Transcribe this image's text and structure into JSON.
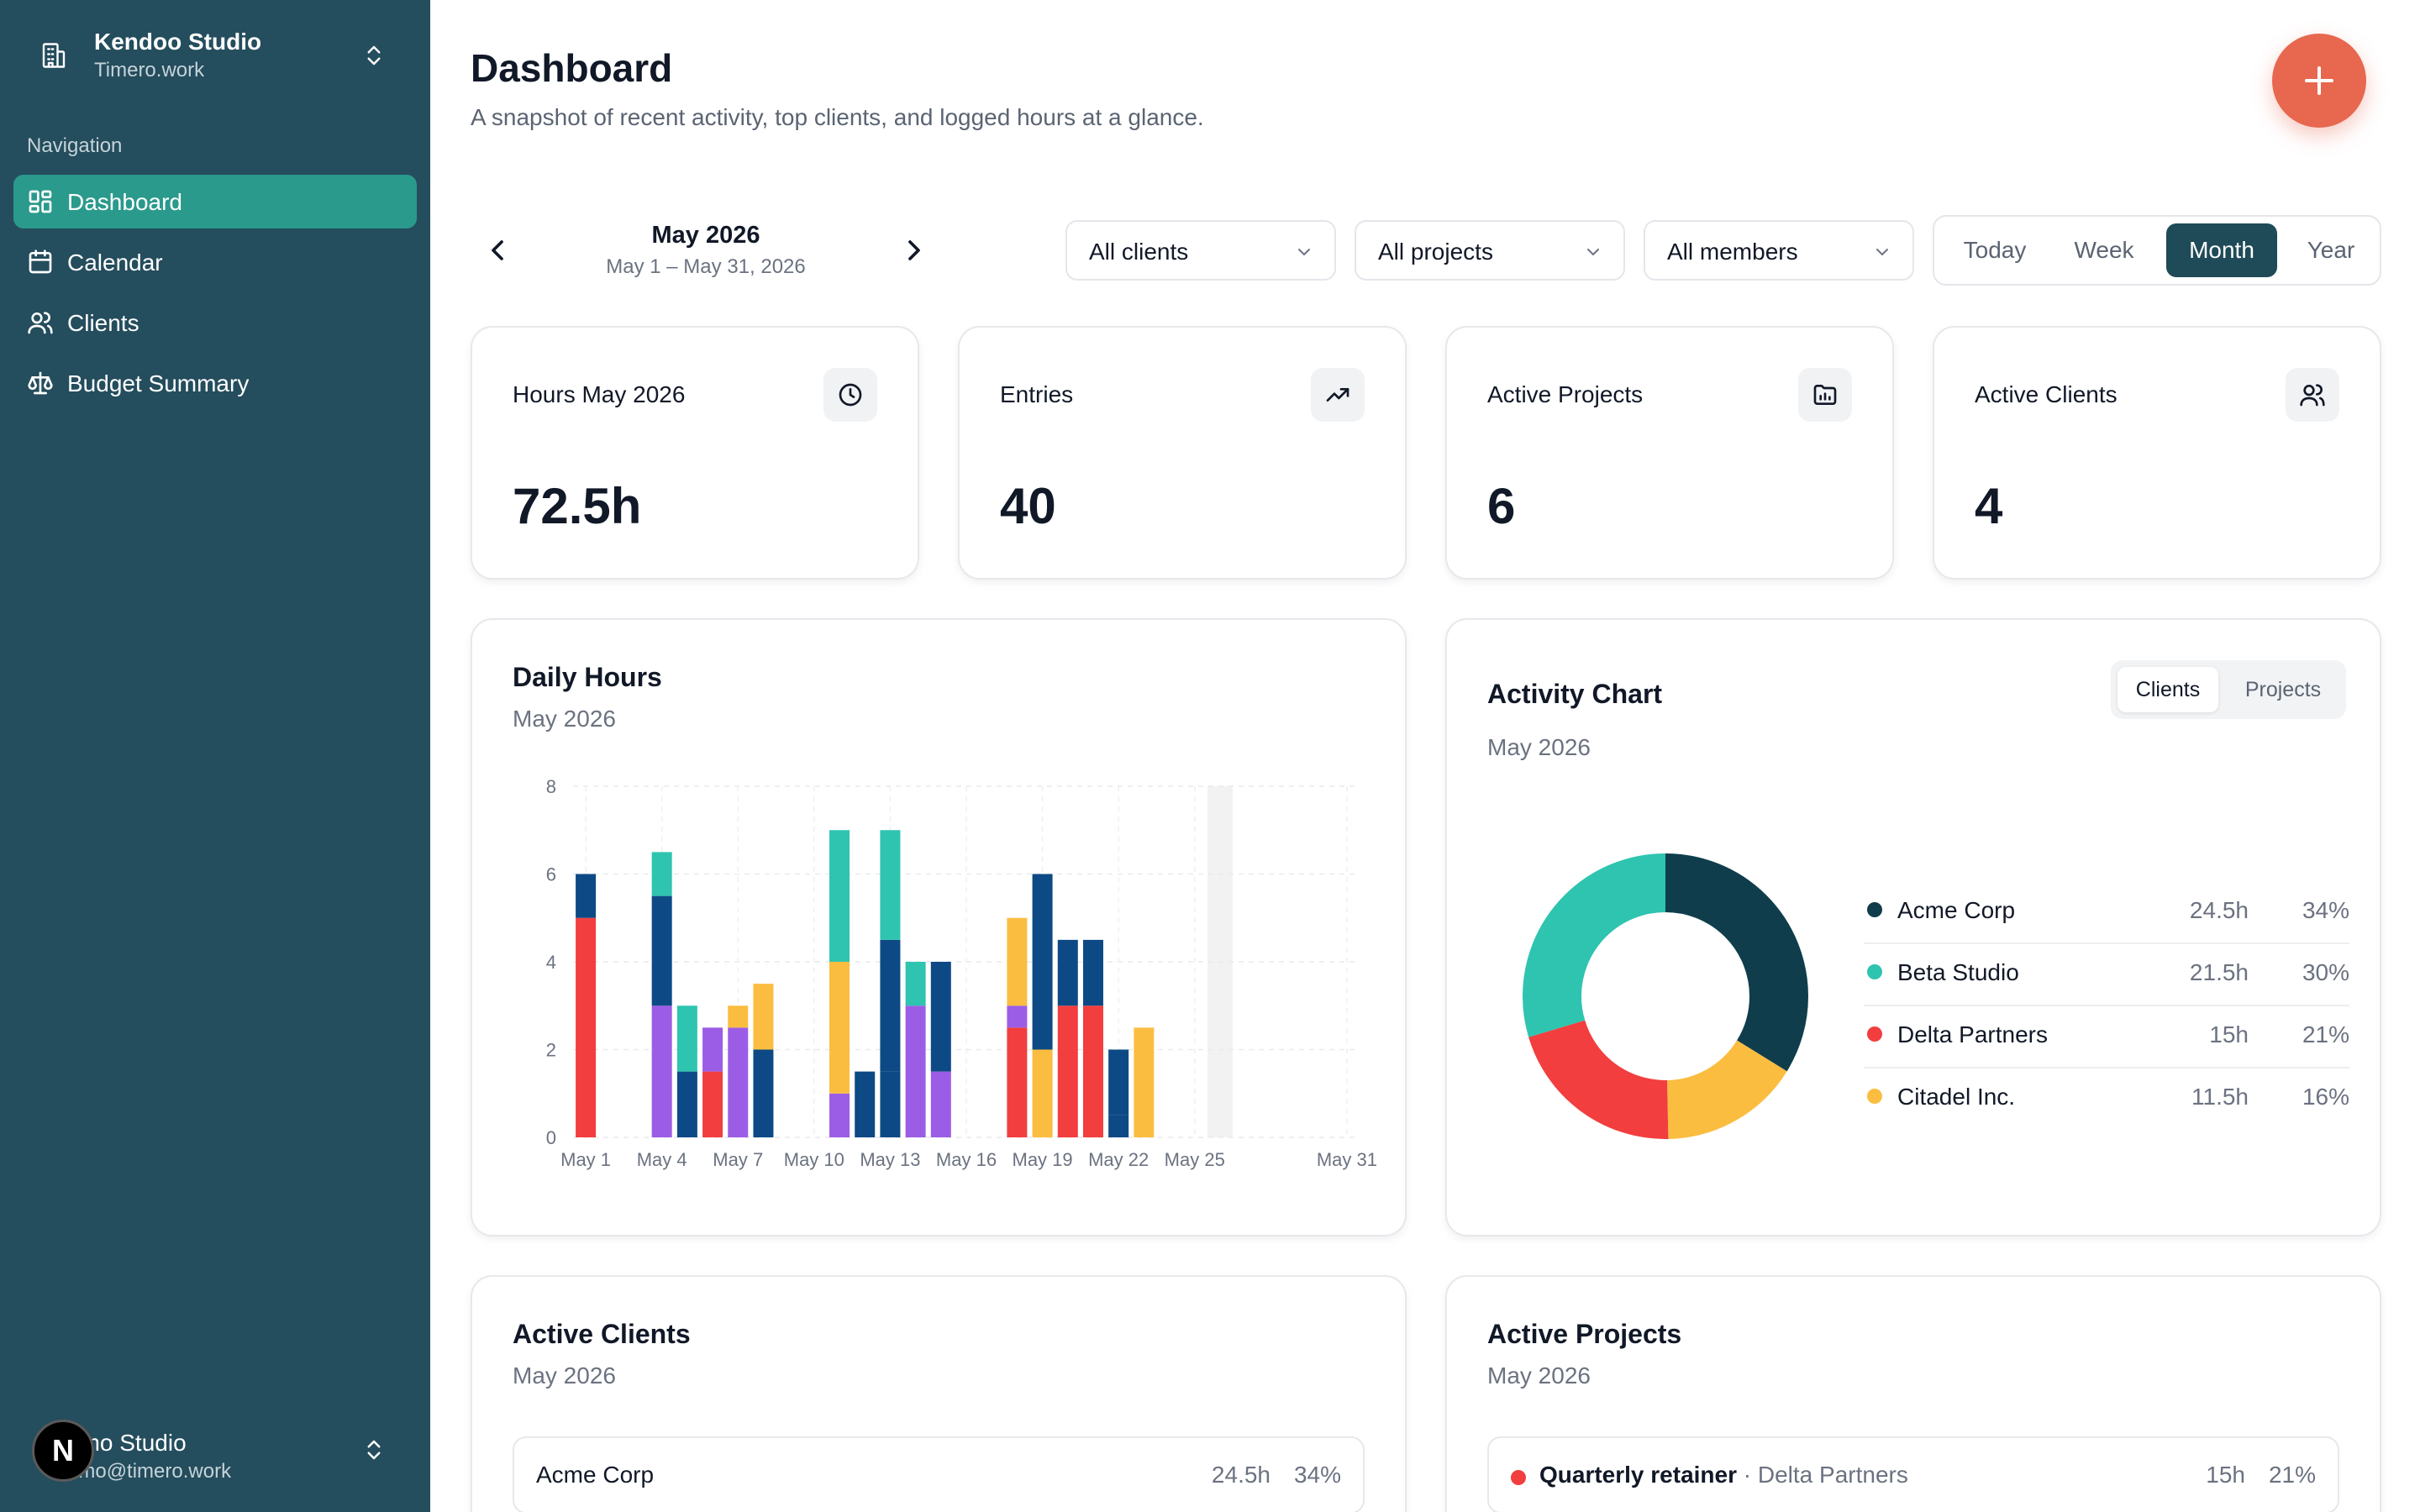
{
  "workspace": {
    "name": "Kendoo Studio",
    "domain": "Timero.work"
  },
  "sidebar": {
    "section_label": "Navigation",
    "items": [
      {
        "label": "Dashboard",
        "icon": "dashboard-icon",
        "active": true
      },
      {
        "label": "Calendar",
        "icon": "calendar-icon"
      },
      {
        "label": "Clients",
        "icon": "users-icon"
      },
      {
        "label": "Budget Summary",
        "icon": "scale-icon"
      }
    ]
  },
  "user": {
    "name": "emo Studio",
    "email": "emo@timero.work",
    "avatar_letter": "N"
  },
  "header": {
    "title": "Dashboard",
    "subtitle": "A snapshot of recent activity, top clients, and logged hours at a glance."
  },
  "period": {
    "title": "May 2026",
    "range": "May 1 – May 31, 2026"
  },
  "filters": {
    "clients": "All clients",
    "projects": "All projects",
    "members": "All members"
  },
  "range_tabs": [
    "Today",
    "Week",
    "Month",
    "Year"
  ],
  "range_active": "Month",
  "stats": [
    {
      "label": "Hours May 2026",
      "value": "72.5h",
      "icon": "clock-icon"
    },
    {
      "label": "Entries",
      "value": "40",
      "icon": "trending-up-icon"
    },
    {
      "label": "Active Projects",
      "value": "6",
      "icon": "folder-chart-icon"
    },
    {
      "label": "Active Clients",
      "value": "4",
      "icon": "users-icon"
    }
  ],
  "colors": {
    "acme": "#0f3d4c",
    "beta": "#2ec4b0",
    "delta": "#f23e3e",
    "citadel": "#fbbd40",
    "purple": "#9b5de5",
    "navy": "#0d4a85",
    "accent": "#2a9a8c",
    "fab": "#e8674f"
  },
  "daily_hours": {
    "title": "Daily Hours",
    "subtitle": "May 2026",
    "chart_data": {
      "type": "bar",
      "stacked": true,
      "x": [
        1,
        2,
        3,
        4,
        5,
        6,
        7,
        8,
        9,
        10,
        11,
        12,
        13,
        14,
        15,
        16,
        17,
        18,
        19,
        20,
        21,
        22,
        23,
        24,
        25,
        26,
        27,
        28,
        29,
        30,
        31
      ],
      "x_tick_labels": [
        "May 1",
        "May 4",
        "May 7",
        "May 10",
        "May 13",
        "May 16",
        "May 19",
        "May 22",
        "May 25",
        "May 31"
      ],
      "x_tick_days": [
        1,
        4,
        7,
        10,
        13,
        16,
        19,
        22,
        25,
        31
      ],
      "ylim": [
        0,
        8
      ],
      "y_ticks": [
        0,
        2,
        4,
        6,
        8
      ],
      "highlight_day": 26,
      "bars": [
        {
          "day": 1,
          "segments": [
            {
              "color": "delta",
              "value": 5
            },
            {
              "color": "navy",
              "value": 1
            }
          ]
        },
        {
          "day": 4,
          "segments": [
            {
              "color": "purple",
              "value": 3
            },
            {
              "color": "navy",
              "value": 2.5
            },
            {
              "color": "beta",
              "value": 1
            }
          ]
        },
        {
          "day": 5,
          "segments": [
            {
              "color": "navy",
              "value": 1.5
            },
            {
              "color": "beta",
              "value": 1.5
            }
          ]
        },
        {
          "day": 6,
          "segments": [
            {
              "color": "delta",
              "value": 1.5
            },
            {
              "color": "purple",
              "value": 1
            }
          ]
        },
        {
          "day": 7,
          "segments": [
            {
              "color": "purple",
              "value": 2.5
            },
            {
              "color": "citadel",
              "value": 0.5
            }
          ]
        },
        {
          "day": 8,
          "segments": [
            {
              "color": "navy",
              "value": 2
            },
            {
              "color": "citadel",
              "value": 1.5
            }
          ]
        },
        {
          "day": 11,
          "segments": [
            {
              "color": "purple",
              "value": 1
            },
            {
              "color": "citadel",
              "value": 3
            },
            {
              "color": "beta",
              "value": 3
            }
          ]
        },
        {
          "day": 12,
          "segments": [
            {
              "color": "navy",
              "value": 1.5
            }
          ]
        },
        {
          "day": 13,
          "segments": [
            {
              "color": "navy",
              "value": 1.5
            },
            {
              "color": "navy",
              "value": 3
            },
            {
              "color": "beta",
              "value": 2.5
            }
          ]
        },
        {
          "day": 14,
          "segments": [
            {
              "color": "purple",
              "value": 3
            },
            {
              "color": "beta",
              "value": 1
            }
          ]
        },
        {
          "day": 15,
          "segments": [
            {
              "color": "purple",
              "value": 1.5
            },
            {
              "color": "navy",
              "value": 2.5
            }
          ]
        },
        {
          "day": 18,
          "segments": [
            {
              "color": "delta",
              "value": 2.5
            },
            {
              "color": "purple",
              "value": 0.5
            },
            {
              "color": "citadel",
              "value": 2
            }
          ]
        },
        {
          "day": 19,
          "segments": [
            {
              "color": "citadel",
              "value": 2
            },
            {
              "color": "navy",
              "value": 4
            }
          ]
        },
        {
          "day": 20,
          "segments": [
            {
              "color": "delta",
              "value": 3
            },
            {
              "color": "navy",
              "value": 1.5
            }
          ]
        },
        {
          "day": 21,
          "segments": [
            {
              "color": "delta",
              "value": 3
            },
            {
              "color": "navy",
              "value": 1.5
            }
          ]
        },
        {
          "day": 22,
          "segments": [
            {
              "color": "navy",
              "value": 0.5
            },
            {
              "color": "navy",
              "value": 1.5
            }
          ]
        },
        {
          "day": 23,
          "segments": [
            {
              "color": "citadel",
              "value": 2.5
            }
          ]
        }
      ]
    }
  },
  "activity": {
    "title": "Activity Chart",
    "subtitle": "May 2026",
    "toggle": [
      "Clients",
      "Projects"
    ],
    "toggle_active": "Clients",
    "chart_data": {
      "type": "pie",
      "donut": true,
      "slices": [
        {
          "name": "Acme Corp",
          "hours": "24.5h",
          "pct": "34%",
          "value": 24.5,
          "color": "#0f3d4c"
        },
        {
          "name": "Beta Studio",
          "hours": "21.5h",
          "pct": "30%",
          "value": 21.5,
          "color": "#2ec4b0"
        },
        {
          "name": "Delta Partners",
          "hours": "15h",
          "pct": "21%",
          "value": 15,
          "color": "#f23e3e"
        },
        {
          "name": "Citadel Inc.",
          "hours": "11.5h",
          "pct": "16%",
          "value": 11.5,
          "color": "#fbbd40"
        }
      ],
      "draw_order": [
        "Acme Corp",
        "Citadel Inc.",
        "Delta Partners",
        "Beta Studio"
      ]
    }
  },
  "active_clients": {
    "title": "Active Clients",
    "subtitle": "May 2026",
    "rows": [
      {
        "name": "Acme Corp",
        "hours": "24.5h",
        "pct": "34%"
      }
    ]
  },
  "active_projects": {
    "title": "Active Projects",
    "subtitle": "May 2026",
    "rows": [
      {
        "name": "Quarterly retainer",
        "client": " · Delta Partners",
        "hours": "15h",
        "pct": "21%",
        "color": "#f23e3e"
      }
    ]
  }
}
